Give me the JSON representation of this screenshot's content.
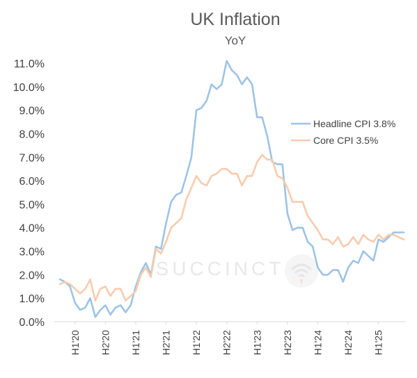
{
  "chart_data": {
    "type": "line",
    "title": "UK Inflation",
    "subtitle": "YoY",
    "ylim": [
      0,
      11
    ],
    "yticks": [
      "0.0%",
      "1.0%",
      "2.0%",
      "3.0%",
      "4.0%",
      "5.0%",
      "6.0%",
      "7.0%",
      "8.0%",
      "9.0%",
      "10.0%",
      "11.0%"
    ],
    "x_start": "2019-10",
    "xticks": [
      {
        "label": "H1'20",
        "month_index": 3
      },
      {
        "label": "H2'20",
        "month_index": 9
      },
      {
        "label": "H1'21",
        "month_index": 15
      },
      {
        "label": "H2'21",
        "month_index": 21
      },
      {
        "label": "H1'22",
        "month_index": 27
      },
      {
        "label": "H2'22",
        "month_index": 33
      },
      {
        "label": "H1'23",
        "month_index": 39
      },
      {
        "label": "H2'23",
        "month_index": 45
      },
      {
        "label": "H1'24",
        "month_index": 51
      },
      {
        "label": "H2'24",
        "month_index": 57
      },
      {
        "label": "H1'25",
        "month_index": 63
      }
    ],
    "legend_position": "right",
    "grid": false,
    "series": [
      {
        "name": "Headline CPI 3.8%",
        "color": "#9dc3e6",
        "values": [
          1.8,
          1.7,
          1.5,
          0.8,
          0.5,
          0.6,
          1.0,
          0.2,
          0.5,
          0.7,
          0.3,
          0.6,
          0.7,
          0.4,
          0.7,
          1.5,
          2.1,
          2.5,
          2.0,
          3.2,
          3.1,
          4.2,
          5.1,
          5.4,
          5.5,
          6.2,
          7.0,
          9.0,
          9.1,
          9.4,
          10.1,
          9.9,
          10.1,
          11.1,
          10.7,
          10.5,
          10.1,
          10.4,
          10.1,
          8.7,
          8.7,
          7.9,
          6.8,
          6.7,
          6.7,
          4.6,
          3.9,
          4.0,
          4.0,
          3.4,
          3.2,
          2.3,
          2.0,
          2.0,
          2.2,
          2.2,
          1.7,
          2.3,
          2.6,
          2.5,
          3.0,
          2.8,
          2.6,
          3.5,
          3.4,
          3.6,
          3.8,
          3.8,
          3.8
        ]
      },
      {
        "name": "Core CPI 3.5%",
        "color": "#f8cbad",
        "values": [
          1.6,
          1.7,
          1.6,
          1.4,
          1.2,
          1.4,
          1.8,
          0.9,
          1.4,
          1.5,
          1.1,
          1.4,
          1.4,
          0.9,
          1.1,
          1.3,
          2.0,
          2.3,
          1.9,
          3.1,
          2.9,
          3.4,
          4.0,
          4.2,
          4.4,
          5.2,
          5.7,
          6.2,
          5.9,
          5.8,
          6.2,
          6.3,
          6.5,
          6.5,
          6.3,
          6.3,
          5.8,
          6.2,
          6.2,
          6.8,
          7.1,
          6.9,
          6.9,
          6.2,
          6.1,
          5.7,
          5.1,
          5.1,
          5.1,
          4.5,
          4.2,
          3.9,
          3.5,
          3.5,
          3.3,
          3.6,
          3.2,
          3.3,
          3.6,
          3.3,
          3.7,
          3.5,
          3.4,
          3.7,
          3.5,
          3.7,
          3.7,
          3.6,
          3.5
        ]
      }
    ],
    "watermark": "SUCCINCT"
  }
}
